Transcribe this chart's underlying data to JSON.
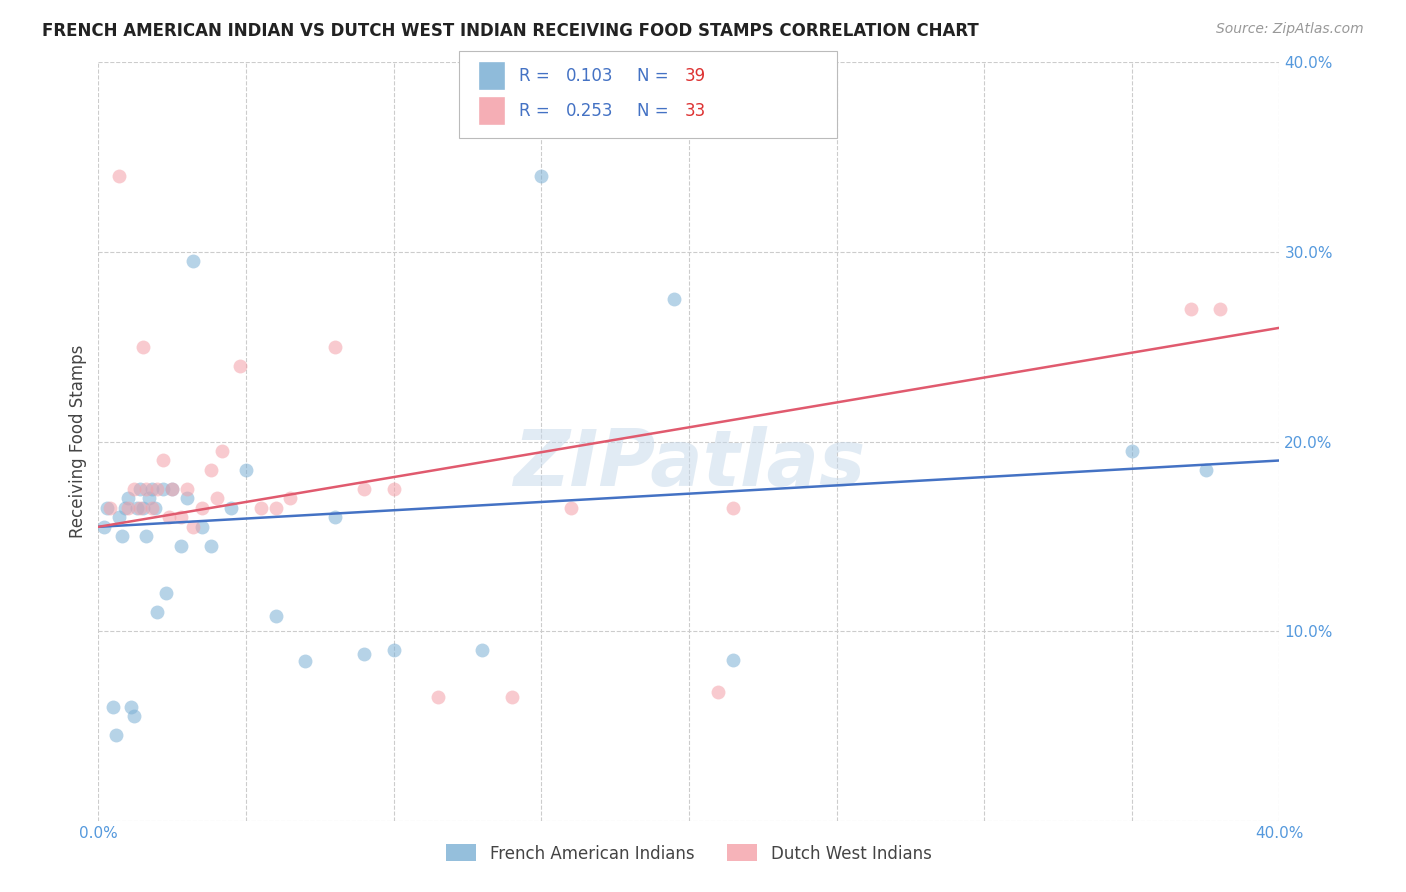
{
  "title": "FRENCH AMERICAN INDIAN VS DUTCH WEST INDIAN RECEIVING FOOD STAMPS CORRELATION CHART",
  "source": "Source: ZipAtlas.com",
  "ylabel": "Receiving Food Stamps",
  "watermark": "ZIPatlas",
  "xlim": [
    0.0,
    0.4
  ],
  "ylim": [
    0.0,
    0.4
  ],
  "xticks": [
    0.0,
    0.05,
    0.1,
    0.15,
    0.2,
    0.25,
    0.3,
    0.35,
    0.4
  ],
  "yticks": [
    0.0,
    0.1,
    0.2,
    0.3,
    0.4
  ],
  "xtick_labels": [
    "0.0%",
    "",
    "",
    "",
    "",
    "",
    "",
    "",
    "40.0%"
  ],
  "ytick_labels": [
    "",
    "10.0%",
    "20.0%",
    "30.0%",
    "40.0%"
  ],
  "background_color": "#FFFFFF",
  "grid_color": "#CCCCCC",
  "scatter_alpha": 0.55,
  "scatter_size": 100,
  "blue_color": "#7BAFD4",
  "pink_color": "#F4A0A8",
  "blue_line_color": "#4472C4",
  "pink_line_color": "#E05A6E",
  "tick_color": "#5599DD",
  "legend_text_color": "#4472C4",
  "blue_scatter_x": [
    0.002,
    0.003,
    0.005,
    0.006,
    0.007,
    0.008,
    0.009,
    0.01,
    0.011,
    0.012,
    0.013,
    0.014,
    0.015,
    0.016,
    0.017,
    0.018,
    0.019,
    0.02,
    0.022,
    0.023,
    0.025,
    0.028,
    0.03,
    0.032,
    0.035,
    0.038,
    0.045,
    0.05,
    0.06,
    0.07,
    0.08,
    0.09,
    0.1,
    0.13,
    0.15,
    0.195,
    0.215,
    0.35,
    0.375
  ],
  "blue_scatter_y": [
    0.155,
    0.165,
    0.06,
    0.045,
    0.16,
    0.15,
    0.165,
    0.17,
    0.06,
    0.055,
    0.165,
    0.175,
    0.165,
    0.15,
    0.17,
    0.175,
    0.165,
    0.11,
    0.175,
    0.12,
    0.175,
    0.145,
    0.17,
    0.295,
    0.155,
    0.145,
    0.165,
    0.185,
    0.108,
    0.084,
    0.16,
    0.088,
    0.09,
    0.09,
    0.34,
    0.275,
    0.085,
    0.195,
    0.185
  ],
  "pink_scatter_x": [
    0.004,
    0.007,
    0.01,
    0.012,
    0.014,
    0.015,
    0.016,
    0.018,
    0.02,
    0.022,
    0.024,
    0.025,
    0.028,
    0.03,
    0.032,
    0.035,
    0.038,
    0.04,
    0.042,
    0.048,
    0.055,
    0.06,
    0.065,
    0.08,
    0.09,
    0.1,
    0.115,
    0.14,
    0.16,
    0.21,
    0.215,
    0.37,
    0.38
  ],
  "pink_scatter_y": [
    0.165,
    0.34,
    0.165,
    0.175,
    0.165,
    0.25,
    0.175,
    0.165,
    0.175,
    0.19,
    0.16,
    0.175,
    0.16,
    0.175,
    0.155,
    0.165,
    0.185,
    0.17,
    0.195,
    0.24,
    0.165,
    0.165,
    0.17,
    0.25,
    0.175,
    0.175,
    0.065,
    0.065,
    0.165,
    0.068,
    0.165,
    0.27,
    0.27
  ],
  "blue_line_x": [
    0.0,
    0.4
  ],
  "blue_line_y": [
    0.155,
    0.19
  ],
  "pink_line_x": [
    0.0,
    0.4
  ],
  "pink_line_y": [
    0.155,
    0.26
  ]
}
